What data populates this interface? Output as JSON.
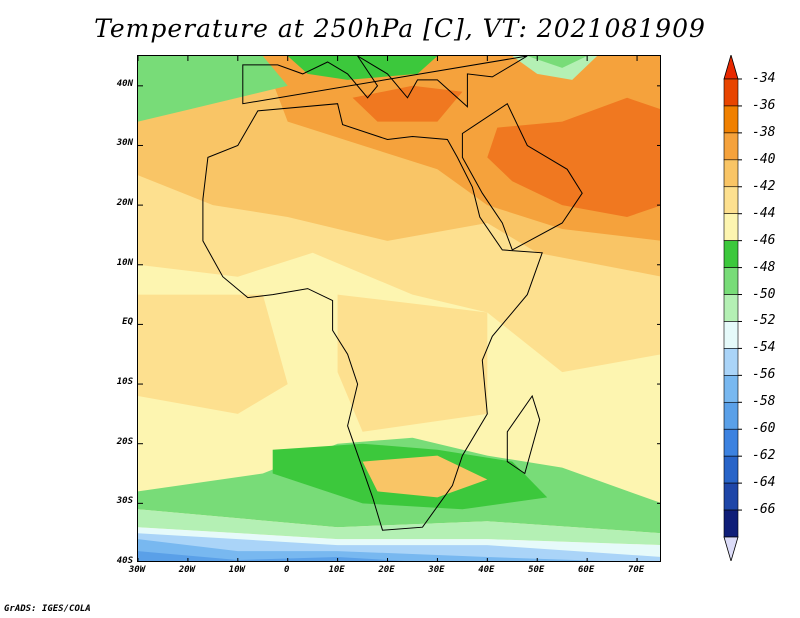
{
  "title": "Temperature at 250hPa [C], VT: 2021081909",
  "credit": "GrADS: IGES/COLA",
  "map": {
    "lon_range": [
      -30,
      75
    ],
    "lat_range": [
      -40,
      45
    ],
    "lat_ticks": [
      {
        "lat": 40,
        "label": "40N"
      },
      {
        "lat": 30,
        "label": "30N"
      },
      {
        "lat": 20,
        "label": "20N"
      },
      {
        "lat": 10,
        "label": "10N"
      },
      {
        "lat": 0,
        "label": "EQ"
      },
      {
        "lat": -10,
        "label": "10S"
      },
      {
        "lat": -20,
        "label": "20S"
      },
      {
        "lat": -30,
        "label": "30S"
      },
      {
        "lat": -40,
        "label": "40S"
      }
    ],
    "lon_ticks": [
      {
        "lon": -30,
        "label": "30W"
      },
      {
        "lon": -20,
        "label": "20W"
      },
      {
        "lon": -10,
        "label": "10W"
      },
      {
        "lon": 0,
        "label": "0"
      },
      {
        "lon": 10,
        "label": "10E"
      },
      {
        "lon": 20,
        "label": "20E"
      },
      {
        "lon": 30,
        "label": "30E"
      },
      {
        "lon": 40,
        "label": "40E"
      },
      {
        "lon": 50,
        "label": "50E"
      },
      {
        "lon": 60,
        "label": "60E"
      },
      {
        "lon": 70,
        "label": "70E"
      }
    ]
  },
  "colorbar": {
    "levels": [
      {
        "label": "-34",
        "color": "#e84500"
      },
      {
        "label": "-36",
        "color": "#f08000"
      },
      {
        "label": "-38",
        "color": "#f5a23c"
      },
      {
        "label": "-40",
        "color": "#f9c566"
      },
      {
        "label": "-42",
        "color": "#fde08f"
      },
      {
        "label": "-44",
        "color": "#fdf5b0"
      },
      {
        "label": "-46",
        "color": "#3cc83c"
      },
      {
        "label": "-48",
        "color": "#78dc78"
      },
      {
        "label": "-50",
        "color": "#b4f0b4"
      },
      {
        "label": "-52",
        "color": "#e6fafa"
      },
      {
        "label": "-54",
        "color": "#aad4f8"
      },
      {
        "label": "-56",
        "color": "#78b8f0"
      },
      {
        "label": "-58",
        "color": "#5aa0e8"
      },
      {
        "label": "-60",
        "color": "#3c82e0"
      },
      {
        "label": "-62",
        "color": "#2864c8"
      },
      {
        "label": "-64",
        "color": "#1e46a8"
      },
      {
        "label": "-66",
        "color": "#0f1e78"
      }
    ],
    "top_arrow_color": "#e82800",
    "bottom_arrow_color": "#dcdcf8"
  },
  "field_colors": {
    "warm_core": "#f07820",
    "warm": "#f5a23c",
    "mid": "#f9c566",
    "light": "#fde08f",
    "pale": "#fdf5b0",
    "green_dark": "#3cc83c",
    "green_mid": "#78dc78",
    "green_light": "#b4f0b4",
    "cyan_pale": "#e6fafa",
    "blue_light": "#aad4f8",
    "blue_mid": "#78b8f0",
    "blue": "#5aa0e8"
  }
}
